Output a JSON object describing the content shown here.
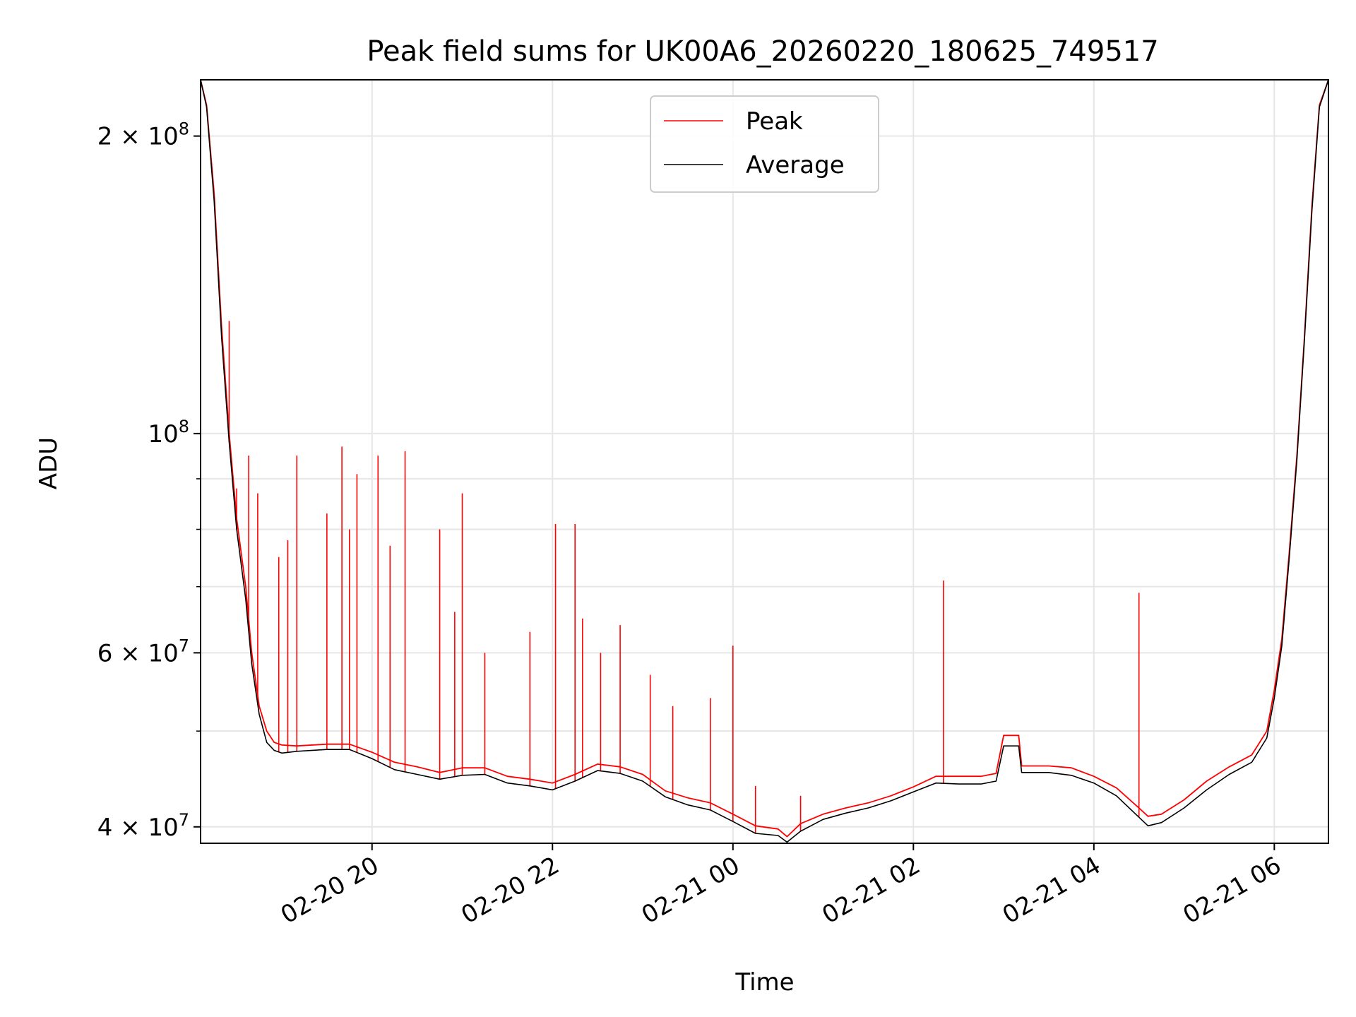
{
  "chart_data": {
    "type": "line",
    "title": "Peak field sums for UK00A6_20260220_180625_749517",
    "xlabel": "Time",
    "ylabel": "ADU",
    "x_unit": "hours",
    "xlim": [
      "02-20 18:06",
      "02-21 06:36"
    ],
    "y_scale": "log",
    "ylim": [
      38500000,
      228000000
    ],
    "grid": true,
    "legend_position": "top-center",
    "x_ticks": [
      {
        "value": "02-20 20:00",
        "label": "02-20 20"
      },
      {
        "value": "02-20 22:00",
        "label": "02-20 22"
      },
      {
        "value": "02-21 00:00",
        "label": "02-21 00"
      },
      {
        "value": "02-21 02:00",
        "label": "02-21 02"
      },
      {
        "value": "02-21 04:00",
        "label": "02-21 04"
      },
      {
        "value": "02-21 06:00",
        "label": "02-21 06"
      }
    ],
    "y_ticks": [
      {
        "value": 40000000,
        "label": "4 × 10^7"
      },
      {
        "value": 60000000,
        "label": "6 × 10^7"
      },
      {
        "value": 100000000,
        "label": "10^8"
      },
      {
        "value": 200000000,
        "label": "2 × 10^8"
      }
    ],
    "y_minor_ticks": [
      50000000,
      70000000,
      80000000,
      90000000
    ],
    "series": [
      {
        "name": "Peak",
        "color": "#ff0000",
        "x": [
          "02-20 18:06",
          "02-20 18:10",
          "02-20 18:15",
          "02-20 18:20",
          "02-20 18:25",
          "02-20 18:30",
          "02-20 18:36",
          "02-20 18:40",
          "02-20 18:45",
          "02-20 18:50",
          "02-20 18:55",
          "02-20 19:00",
          "02-20 19:10",
          "02-20 19:30",
          "02-20 19:45",
          "02-20 20:00",
          "02-20 20:15",
          "02-20 20:30",
          "02-20 20:45",
          "02-20 21:00",
          "02-20 21:15",
          "02-20 21:30",
          "02-20 21:45",
          "02-20 22:00",
          "02-20 22:15",
          "02-20 22:30",
          "02-20 22:45",
          "02-20 23:00",
          "02-20 23:15",
          "02-20 23:30",
          "02-20 23:45",
          "02-21 00:00",
          "02-21 00:15",
          "02-21 00:30",
          "02-21 00:36",
          "02-21 00:45",
          "02-21 01:00",
          "02-21 01:15",
          "02-21 01:30",
          "02-21 01:45",
          "02-21 02:00",
          "02-21 02:15",
          "02-21 02:30",
          "02-21 02:45",
          "02-21 02:55",
          "02-21 03:00",
          "02-21 03:10",
          "02-21 03:12",
          "02-21 03:30",
          "02-21 03:45",
          "02-21 04:00",
          "02-21 04:15",
          "02-21 04:30",
          "02-21 04:36",
          "02-21 04:45",
          "02-21 05:00",
          "02-21 05:15",
          "02-21 05:30",
          "02-21 05:45",
          "02-21 05:55",
          "02-21 06:00",
          "02-21 06:05",
          "02-21 06:10",
          "02-21 06:15",
          "02-21 06:20",
          "02-21 06:25",
          "02-21 06:30",
          "02-21 06:36"
        ],
        "values": [
          228000000,
          215000000,
          175000000,
          128000000,
          100000000,
          82000000,
          70000000,
          60000000,
          53000000,
          50000000,
          48700000,
          48400000,
          48300000,
          48500000,
          48500000,
          47600000,
          46500000,
          46000000,
          45400000,
          45900000,
          45900000,
          45000000,
          44700000,
          44300000,
          45200000,
          46300000,
          46000000,
          45200000,
          43500000,
          42800000,
          42300000,
          41200000,
          40100000,
          39800000,
          39100000,
          40300000,
          41200000,
          41800000,
          42300000,
          43000000,
          43900000,
          45000000,
          45000000,
          45000000,
          45300000,
          49500000,
          49500000,
          46100000,
          46100000,
          45900000,
          45000000,
          43800000,
          41800000,
          41000000,
          41200000,
          42600000,
          44500000,
          46000000,
          47300000,
          50000000,
          55000000,
          62000000,
          76000000,
          95000000,
          125000000,
          170000000,
          215000000,
          228000000
        ]
      },
      {
        "name": "Average",
        "color": "#000000",
        "x": [
          "02-20 18:06",
          "02-20 18:10",
          "02-20 18:15",
          "02-20 18:20",
          "02-20 18:25",
          "02-20 18:30",
          "02-20 18:36",
          "02-20 18:40",
          "02-20 18:45",
          "02-20 18:50",
          "02-20 18:55",
          "02-20 19:00",
          "02-20 19:10",
          "02-20 19:30",
          "02-20 19:45",
          "02-20 20:00",
          "02-20 20:15",
          "02-20 20:30",
          "02-20 20:45",
          "02-20 21:00",
          "02-20 21:15",
          "02-20 21:30",
          "02-20 21:45",
          "02-20 22:00",
          "02-20 22:15",
          "02-20 22:30",
          "02-20 22:45",
          "02-20 23:00",
          "02-20 23:15",
          "02-20 23:30",
          "02-20 23:45",
          "02-21 00:00",
          "02-21 00:15",
          "02-21 00:30",
          "02-21 00:36",
          "02-21 00:45",
          "02-21 01:00",
          "02-21 01:15",
          "02-21 01:30",
          "02-21 01:45",
          "02-21 02:00",
          "02-21 02:15",
          "02-21 02:30",
          "02-21 02:45",
          "02-21 02:55",
          "02-21 03:00",
          "02-21 03:10",
          "02-21 03:12",
          "02-21 03:30",
          "02-21 03:45",
          "02-21 04:00",
          "02-21 04:15",
          "02-21 04:30",
          "02-21 04:36",
          "02-21 04:45",
          "02-21 05:00",
          "02-21 05:15",
          "02-21 05:30",
          "02-21 05:45",
          "02-21 05:55",
          "02-21 06:00",
          "02-21 06:05",
          "02-21 06:10",
          "02-21 06:15",
          "02-21 06:20",
          "02-21 06:25",
          "02-21 06:30",
          "02-21 06:36"
        ],
        "values": [
          228000000,
          214000000,
          172000000,
          125000000,
          98000000,
          80000000,
          68000000,
          58500000,
          52000000,
          48700000,
          47800000,
          47500000,
          47700000,
          47900000,
          47900000,
          46900000,
          45700000,
          45200000,
          44700000,
          45100000,
          45200000,
          44300000,
          44000000,
          43600000,
          44500000,
          45600000,
          45300000,
          44500000,
          42900000,
          42100000,
          41600000,
          40500000,
          39400000,
          39200000,
          38600000,
          39600000,
          40700000,
          41300000,
          41800000,
          42500000,
          43400000,
          44300000,
          44200000,
          44200000,
          44500000,
          48300000,
          48300000,
          45400000,
          45400000,
          45100000,
          44300000,
          43000000,
          40900000,
          40100000,
          40400000,
          41800000,
          43600000,
          45200000,
          46500000,
          49200000,
          54000000,
          61000000,
          75000000,
          94000000,
          124000000,
          168000000,
          214000000,
          228000000
        ]
      }
    ],
    "peak_spikes": {
      "x": [
        "02-20 18:25",
        "02-20 18:30",
        "02-20 18:38",
        "02-20 18:44",
        "02-20 18:58",
        "02-20 19:04",
        "02-20 19:10",
        "02-20 19:30",
        "02-20 19:40",
        "02-20 19:45",
        "02-20 19:50",
        "02-20 20:04",
        "02-20 20:12",
        "02-20 20:22",
        "02-20 20:45",
        "02-20 20:55",
        "02-20 21:00",
        "02-20 21:15",
        "02-20 21:45",
        "02-20 22:02",
        "02-20 22:15",
        "02-20 22:20",
        "02-20 22:32",
        "02-20 22:45",
        "02-20 23:05",
        "02-20 23:20",
        "02-20 23:45",
        "02-21 00:00",
        "02-21 00:15",
        "02-21 00:45",
        "02-21 02:20",
        "02-21 04:30"
      ],
      "values": [
        130000000,
        88000000,
        95000000,
        87000000,
        75000000,
        78000000,
        95000000,
        83000000,
        97000000,
        80000000,
        91000000,
        95000000,
        77000000,
        96000000,
        80000000,
        66000000,
        87000000,
        60000000,
        63000000,
        81000000,
        81000000,
        65000000,
        60000000,
        64000000,
        57000000,
        53000000,
        54000000,
        61000000,
        44000000,
        43000000,
        71000000,
        69000000
      ]
    }
  }
}
